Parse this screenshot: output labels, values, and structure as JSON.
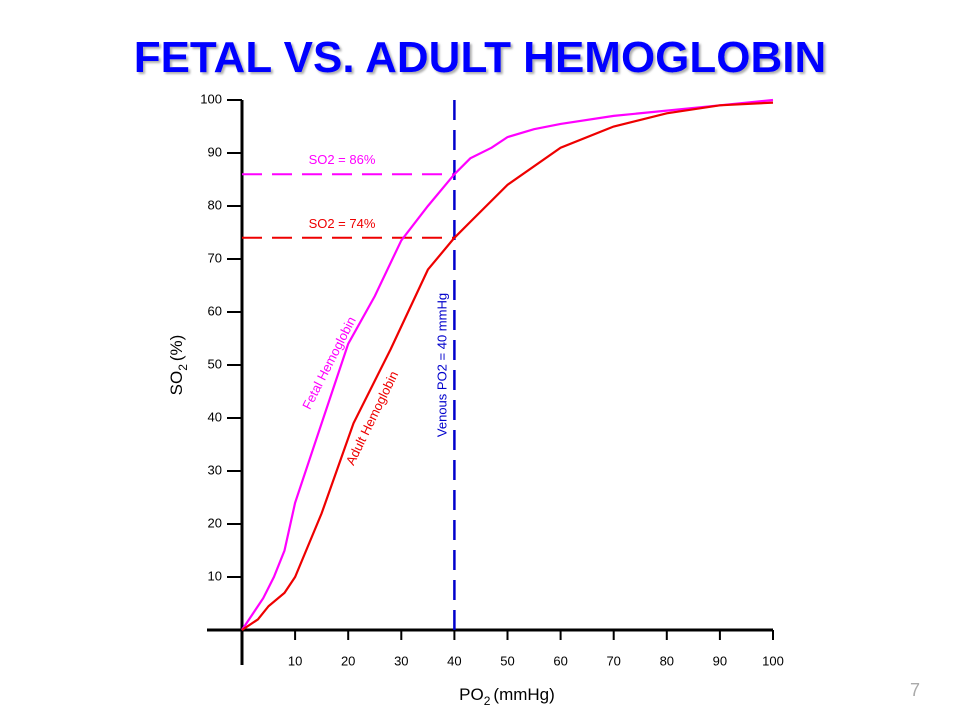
{
  "slide_title": "FETAL VS. ADULT HEMOGLOBIN",
  "page_number": "7",
  "chart_data": {
    "type": "line",
    "y_label": {
      "base": "SO",
      "sub": "2",
      "rest": "(%)"
    },
    "x_label": {
      "base": "PO",
      "sub": "2",
      "rest": "(mmHg)"
    },
    "xlim": [
      0,
      100
    ],
    "ylim": [
      0,
      100
    ],
    "xticks": [
      10,
      20,
      30,
      40,
      50,
      60,
      70,
      80,
      90,
      100
    ],
    "yticks": [
      10,
      20,
      30,
      40,
      50,
      60,
      70,
      80,
      90,
      100
    ],
    "series": [
      {
        "name": "Fetal Hemoglobin",
        "color": "#ff00ff",
        "x": [
          0,
          4,
          6,
          8,
          10,
          14,
          20,
          25,
          30,
          35,
          40,
          43,
          47,
          50,
          55,
          60,
          70,
          80,
          90,
          100
        ],
        "values": [
          0,
          6,
          10,
          15,
          24,
          36,
          54,
          63,
          73.5,
          80,
          86,
          89,
          91,
          93,
          94.5,
          95.5,
          97,
          98,
          99,
          100
        ]
      },
      {
        "name": "Adult Hemoglobin",
        "color": "#ee0000",
        "x": [
          0,
          3,
          5,
          8,
          10,
          15,
          21,
          28,
          35,
          40,
          43,
          50,
          60,
          70,
          80,
          90,
          100
        ],
        "values": [
          0,
          2,
          4.5,
          7,
          10,
          22,
          39,
          53,
          68,
          74,
          77,
          84,
          91,
          95,
          97.5,
          99,
          99.5
        ]
      }
    ],
    "reference_lines": [
      {
        "label": "SO2 = 86%",
        "y": 86,
        "x_end": 40,
        "color": "#ff00ff"
      },
      {
        "label": "SO2 = 74%",
        "y": 74,
        "x_end": 40,
        "color": "#ee0000"
      }
    ],
    "vertical_line": {
      "label": "Venous PO2 =  40 mmHg",
      "x": 40,
      "color": "#0000cc"
    }
  }
}
